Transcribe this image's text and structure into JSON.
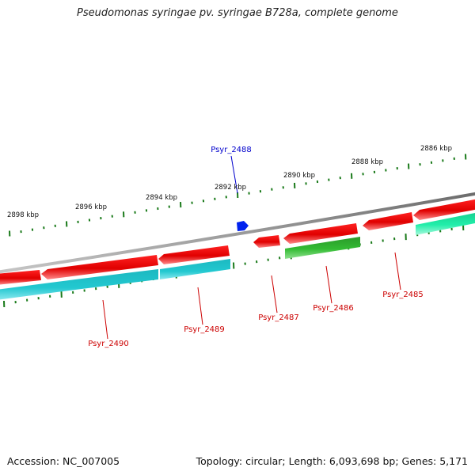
{
  "title": "Pseudomonas syringae pv. syringae B728a, complete genome",
  "footer": {
    "accession": "Accession: NC_007005",
    "summary": "Topology: circular; Length: 6,093,698 bp; Genes: 5,171"
  },
  "ticks": [
    "2898 kbp",
    "2896 kbp",
    "2894 kbp",
    "2892 kbp",
    "2890 kbp",
    "2888 kbp",
    "2886 kbp"
  ],
  "genes": [
    {
      "label": "Psyr_2488",
      "color": "#0000cc"
    },
    {
      "label": "Psyr_2490",
      "color": "#cc0000"
    },
    {
      "label": "Psyr_2489",
      "color": "#cc0000"
    },
    {
      "label": "Psyr_2487",
      "color": "#cc0000"
    },
    {
      "label": "Psyr_2486",
      "color": "#cc0000"
    },
    {
      "label": "Psyr_2485",
      "color": "#cc0000"
    }
  ],
  "colors": {
    "backbone": "#808080",
    "cds": "#ee0000",
    "rna_teal": "#22c4cc",
    "green": "#33bb33",
    "mint": "#22eeaa",
    "tick": "#1a7a1a",
    "label_red": "#cc0000",
    "label_blue": "#0000cc"
  }
}
